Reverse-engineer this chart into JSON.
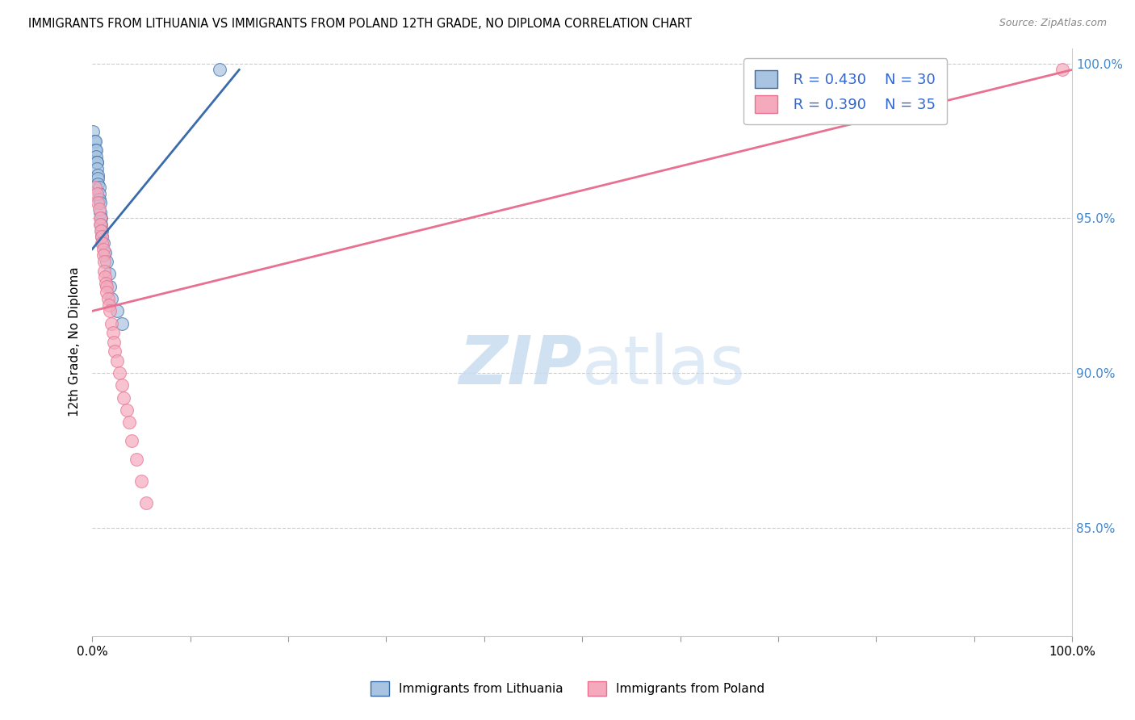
{
  "title": "IMMIGRANTS FROM LITHUANIA VS IMMIGRANTS FROM POLAND 12TH GRADE, NO DIPLOMA CORRELATION CHART",
  "source": "Source: ZipAtlas.com",
  "ylabel": "12th Grade, No Diploma",
  "legend_r1": "R = 0.430",
  "legend_n1": "N = 30",
  "legend_r2": "R = 0.390",
  "legend_n2": "N = 35",
  "color_blue": "#A8C4E0",
  "color_pink": "#F4AABC",
  "color_blue_line": "#3A6BAA",
  "color_pink_line": "#E87090",
  "color_blue_text": "#3366CC",
  "color_right_axis": "#4488CC",
  "xlim": [
    0.0,
    1.0
  ],
  "ylim_low": 0.815,
  "ylim_high": 1.005,
  "right_ytick_positions": [
    0.85,
    0.9,
    0.95,
    1.0
  ],
  "blue_scatter_x": [
    0.001,
    0.002,
    0.003,
    0.003,
    0.004,
    0.004,
    0.005,
    0.005,
    0.005,
    0.006,
    0.006,
    0.006,
    0.007,
    0.007,
    0.007,
    0.008,
    0.008,
    0.009,
    0.009,
    0.01,
    0.01,
    0.011,
    0.013,
    0.015,
    0.017,
    0.018,
    0.02,
    0.025,
    0.03,
    0.13
  ],
  "blue_scatter_y": [
    0.978,
    0.975,
    0.975,
    0.972,
    0.972,
    0.97,
    0.968,
    0.968,
    0.966,
    0.964,
    0.963,
    0.961,
    0.96,
    0.958,
    0.956,
    0.955,
    0.952,
    0.95,
    0.948,
    0.946,
    0.944,
    0.942,
    0.939,
    0.936,
    0.932,
    0.928,
    0.924,
    0.92,
    0.916,
    0.998
  ],
  "pink_scatter_x": [
    0.003,
    0.005,
    0.006,
    0.007,
    0.008,
    0.008,
    0.009,
    0.01,
    0.01,
    0.011,
    0.011,
    0.012,
    0.012,
    0.013,
    0.014,
    0.015,
    0.015,
    0.016,
    0.017,
    0.018,
    0.02,
    0.021,
    0.022,
    0.023,
    0.025,
    0.028,
    0.03,
    0.032,
    0.035,
    0.038,
    0.04,
    0.045,
    0.05,
    0.055,
    0.99
  ],
  "pink_scatter_y": [
    0.96,
    0.958,
    0.955,
    0.953,
    0.95,
    0.948,
    0.946,
    0.944,
    0.942,
    0.94,
    0.938,
    0.936,
    0.933,
    0.931,
    0.929,
    0.928,
    0.926,
    0.924,
    0.922,
    0.92,
    0.916,
    0.913,
    0.91,
    0.907,
    0.904,
    0.9,
    0.896,
    0.892,
    0.888,
    0.884,
    0.878,
    0.872,
    0.865,
    0.858,
    0.998
  ],
  "blue_line_x": [
    0.0,
    0.15
  ],
  "blue_line_y": [
    0.94,
    0.998
  ],
  "pink_line_x": [
    0.0,
    1.0
  ],
  "pink_line_y": [
    0.92,
    0.998
  ]
}
